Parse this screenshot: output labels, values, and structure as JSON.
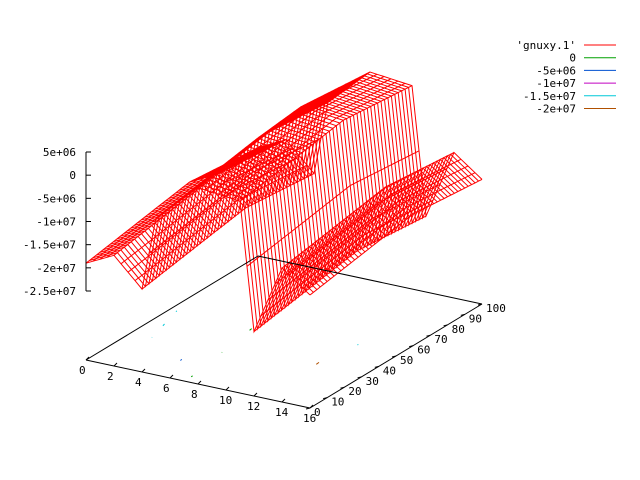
{
  "colors": {
    "mesh": "#ff0000",
    "axes": "#000000",
    "contour_0": "#00a000",
    "contour_m5e6": "#0050d0",
    "contour_m1e7": "#c000c0",
    "contour_m15e6": "#00c8d8",
    "contour_m2e7": "#b05000"
  },
  "legend": [
    {
      "label": "'gnuxy.1'",
      "color": "#ff0000"
    },
    {
      "label": "0",
      "color": "#00a000"
    },
    {
      "label": "-5e+06",
      "color": "#0050d0"
    },
    {
      "label": "-1e+07",
      "color": "#c000c0"
    },
    {
      "label": "-1.5e+07",
      "color": "#00c8d8"
    },
    {
      "label": "-2e+07",
      "color": "#b05000"
    }
  ],
  "chart_data": {
    "type": "surface",
    "series_name": "'gnuxy.1'",
    "xlim": [
      0,
      16
    ],
    "ylim": [
      0,
      100
    ],
    "zlim": [
      -25000000,
      5000000
    ],
    "x_ticks": [
      "0",
      "2",
      "4",
      "6",
      "8",
      "10",
      "12",
      "14",
      "16"
    ],
    "y_ticks": [
      "0",
      "10",
      "20",
      "30",
      "40",
      "50",
      "60",
      "70",
      "80",
      "90",
      "100"
    ],
    "z_ticks": [
      "5e+06",
      "0",
      "-5e+06",
      "-1e+07",
      "-1.5e+07",
      "-2e+07",
      "-2.5e+07"
    ],
    "contour_levels": [
      0,
      -5000000,
      -10000000,
      -15000000,
      -20000000
    ],
    "surface_profile_x": [
      {
        "x": 0,
        "z": -19000000
      },
      {
        "x": 2,
        "z": -16000000
      },
      {
        "x": 4,
        "z": -22000000
      },
      {
        "x": 5,
        "z": -6000000
      },
      {
        "x": 8,
        "z": 2500000
      },
      {
        "x": 11,
        "z": 1500000
      },
      {
        "x": 12,
        "z": -26000000
      },
      {
        "x": 14,
        "z": -11000000
      },
      {
        "x": 16,
        "z": -15500000
      }
    ],
    "surface_profile_y": [
      {
        "y": 0,
        "z": 0
      },
      {
        "y": 60,
        "z": 4000000
      },
      {
        "y": 100,
        "z": 2500000
      }
    ],
    "grid": false
  }
}
